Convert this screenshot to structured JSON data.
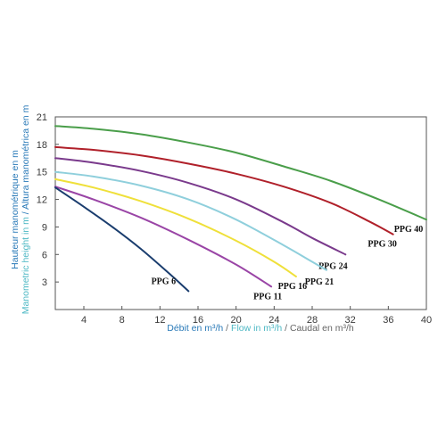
{
  "chart_data": {
    "type": "line",
    "xlim": [
      1,
      40
    ],
    "ylim": [
      0,
      21
    ],
    "x_ticks": [
      4,
      8,
      12,
      16,
      20,
      24,
      28,
      32,
      36,
      40
    ],
    "y_ticks": [
      3,
      6,
      9,
      12,
      15,
      18,
      21
    ],
    "grid": false,
    "ylabel_lines": [
      [
        {
          "text": "Hauteur manométrique en m",
          "color": "#2a7ab8"
        }
      ],
      [
        {
          "text": "Manometric height in m",
          "color": "#4db8c4"
        },
        {
          "text": " / Altura manométrica en m",
          "color": "#2a7ab8"
        }
      ]
    ],
    "xlabel_parts": [
      {
        "text": "Débit en m³/h",
        "color": "#2a7ab8"
      },
      {
        "text": " / ",
        "color": "#666666"
      },
      {
        "text": "Flow in m³/h",
        "color": "#4db8c4"
      },
      {
        "text": " / Caudal en m³/h",
        "color": "#666666"
      }
    ],
    "series": [
      {
        "name": "PPG 40",
        "color": "#4a9e4a",
        "x": [
          1,
          5,
          10,
          15,
          20,
          25,
          30,
          35,
          40
        ],
        "y": [
          20.0,
          19.7,
          19.1,
          18.2,
          17.1,
          15.6,
          14.0,
          12.0,
          9.8
        ]
      },
      {
        "name": "PPG 30",
        "color": "#b0202a",
        "x": [
          1,
          5,
          10,
          15,
          20,
          25,
          30,
          34,
          36.5
        ],
        "y": [
          17.7,
          17.4,
          16.8,
          15.9,
          14.8,
          13.4,
          11.6,
          9.6,
          8.2
        ]
      },
      {
        "name": "PPG 24",
        "color": "#7a3a8c",
        "x": [
          1,
          5,
          10,
          15,
          20,
          25,
          28,
          31.5
        ],
        "y": [
          16.5,
          16.0,
          15.1,
          13.8,
          12.0,
          9.5,
          7.8,
          6.0
        ]
      },
      {
        "name": "PPG 21",
        "color": "#8fcfdc",
        "x": [
          1,
          5,
          10,
          15,
          20,
          25,
          28,
          29.5
        ],
        "y": [
          15.0,
          14.5,
          13.5,
          12.0,
          9.8,
          7.0,
          5.2,
          4.3
        ]
      },
      {
        "name": "PPG 16",
        "color": "#efe03a",
        "x": [
          1,
          5,
          10,
          15,
          20,
          24,
          26.3
        ],
        "y": [
          14.2,
          13.3,
          11.8,
          9.9,
          7.5,
          5.2,
          3.6
        ]
      },
      {
        "name": "PPG 11",
        "color": "#9a45a6",
        "x": [
          1,
          5,
          10,
          15,
          20,
          23.7
        ],
        "y": [
          13.4,
          12.0,
          10.0,
          7.6,
          4.9,
          2.5
        ]
      },
      {
        "name": "PPG 6",
        "color": "#1a3d6e",
        "x": [
          1,
          4,
          7,
          10,
          13,
          15
        ],
        "y": [
          13.3,
          11.2,
          9.0,
          6.6,
          3.9,
          2.0
        ]
      }
    ]
  }
}
